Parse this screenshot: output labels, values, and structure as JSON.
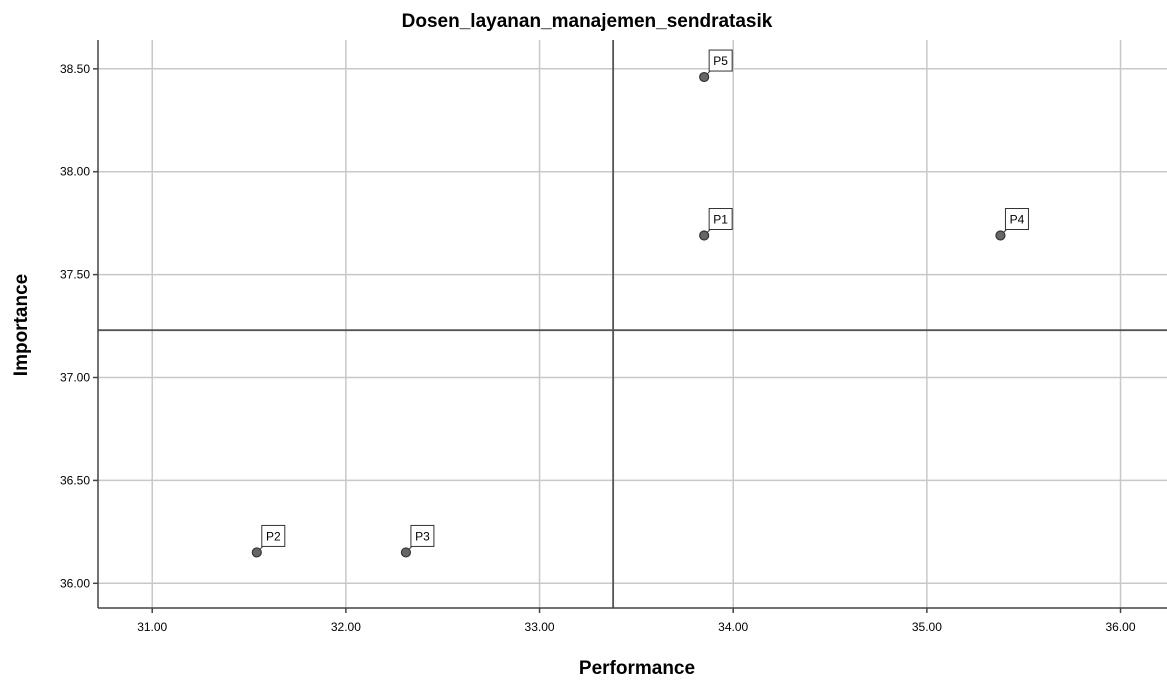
{
  "chart_data": {
    "type": "scatter",
    "title": "Dosen_layanan_manajemen_sendratasik",
    "xlabel": "Performance",
    "ylabel": "Importance",
    "xlim": [
      30.72,
      36.24
    ],
    "ylim": [
      35.88,
      38.64
    ],
    "xticks": [
      "31.00",
      "32.00",
      "33.00",
      "34.00",
      "35.00",
      "36.00"
    ],
    "xtick_values": [
      31,
      32,
      33,
      34,
      35,
      36
    ],
    "yticks": [
      "36.00",
      "36.50",
      "37.00",
      "37.50",
      "38.00",
      "38.50"
    ],
    "ytick_values": [
      36.0,
      36.5,
      37.0,
      37.5,
      38.0,
      38.5
    ],
    "grid": true,
    "reference_lines": {
      "x": 33.38,
      "y": 37.23
    },
    "points": [
      {
        "label": "P1",
        "x": 33.85,
        "y": 37.69
      },
      {
        "label": "P2",
        "x": 31.54,
        "y": 36.15
      },
      {
        "label": "P3",
        "x": 32.31,
        "y": 36.15
      },
      {
        "label": "P4",
        "x": 35.38,
        "y": 37.69
      },
      {
        "label": "P5",
        "x": 33.85,
        "y": 38.46
      }
    ],
    "colors": {
      "point_fill": "#666666",
      "grid": "#c8c8c8",
      "reference": "#555555"
    }
  }
}
